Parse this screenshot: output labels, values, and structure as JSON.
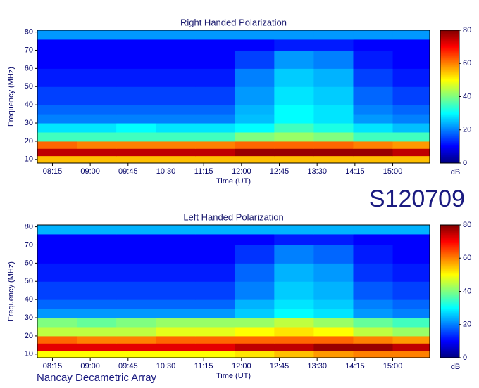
{
  "observation_id": "S120709",
  "instrument": "Nancay Decametric Array",
  "chart_data": [
    {
      "type": "heatmap",
      "title": "Right Handed Polarization",
      "x_label": "Time (UT)",
      "y_label": "Frequency (MHz)",
      "colorbar_label": "dB",
      "xlim": [
        477,
        944
      ],
      "ylim": [
        8,
        81
      ],
      "clim": [
        0,
        80
      ],
      "xticks": [
        {
          "value": 495,
          "label": "08:15"
        },
        {
          "value": 540,
          "label": "09:00"
        },
        {
          "value": 585,
          "label": "09:45"
        },
        {
          "value": 630,
          "label": "10:30"
        },
        {
          "value": 675,
          "label": "11:15"
        },
        {
          "value": 720,
          "label": "12:00"
        },
        {
          "value": 765,
          "label": "12:45"
        },
        {
          "value": 810,
          "label": "13:30"
        },
        {
          "value": 855,
          "label": "14:15"
        },
        {
          "value": 900,
          "label": "15:00"
        }
      ],
      "yticks": [
        10,
        20,
        30,
        40,
        50,
        60,
        70,
        80
      ],
      "cticks": [
        0,
        20,
        40,
        60,
        80
      ],
      "x_bins": [
        477,
        524,
        571,
        618,
        665,
        712,
        759,
        806,
        853,
        900,
        944
      ],
      "y_bins": [
        8,
        12,
        16,
        20,
        25,
        30,
        35,
        40,
        50,
        60,
        70,
        76,
        81
      ],
      "z": [
        [
          55,
          55,
          55,
          55,
          55,
          55,
          55,
          55,
          55,
          55
        ],
        [
          75,
          75,
          75,
          75,
          75,
          78,
          78,
          78,
          78,
          75
        ],
        [
          62,
          60,
          60,
          60,
          60,
          62,
          62,
          62,
          60,
          58
        ],
        [
          35,
          35,
          35,
          35,
          35,
          40,
          42,
          40,
          35,
          35
        ],
        [
          28,
          28,
          30,
          28,
          28,
          30,
          35,
          32,
          28,
          25
        ],
        [
          20,
          20,
          20,
          20,
          20,
          25,
          30,
          28,
          22,
          20
        ],
        [
          18,
          18,
          18,
          18,
          18,
          24,
          30,
          28,
          20,
          18
        ],
        [
          15,
          15,
          15,
          15,
          15,
          22,
          28,
          26,
          18,
          15
        ],
        [
          12,
          12,
          12,
          12,
          12,
          20,
          26,
          24,
          15,
          12
        ],
        [
          10,
          10,
          10,
          10,
          10,
          15,
          22,
          20,
          12,
          10
        ],
        [
          10,
          10,
          10,
          10,
          10,
          10,
          12,
          12,
          10,
          10
        ],
        [
          22,
          22,
          22,
          22,
          22,
          22,
          22,
          22,
          22,
          22
        ]
      ]
    },
    {
      "type": "heatmap",
      "title": "Left Handed Polarization",
      "x_label": "Time (UT)",
      "y_label": "Frequency (MHz)",
      "colorbar_label": "dB",
      "xlim": [
        477,
        944
      ],
      "ylim": [
        8,
        81
      ],
      "clim": [
        0,
        80
      ],
      "xticks": [
        {
          "value": 495,
          "label": "08:15"
        },
        {
          "value": 540,
          "label": "09:00"
        },
        {
          "value": 585,
          "label": "09:45"
        },
        {
          "value": 630,
          "label": "10:30"
        },
        {
          "value": 675,
          "label": "11:15"
        },
        {
          "value": 720,
          "label": "12:00"
        },
        {
          "value": 765,
          "label": "12:45"
        },
        {
          "value": 810,
          "label": "13:30"
        },
        {
          "value": 855,
          "label": "14:15"
        },
        {
          "value": 900,
          "label": "15:00"
        }
      ],
      "yticks": [
        10,
        20,
        30,
        40,
        50,
        60,
        70,
        80
      ],
      "cticks": [
        0,
        20,
        40,
        60,
        80
      ],
      "x_bins": [
        477,
        524,
        571,
        618,
        665,
        712,
        759,
        806,
        853,
        900,
        944
      ],
      "y_bins": [
        8,
        12,
        16,
        20,
        25,
        30,
        35,
        40,
        50,
        60,
        70,
        76,
        81
      ],
      "z": [
        [
          50,
          50,
          50,
          50,
          50,
          52,
          55,
          58,
          60,
          60
        ],
        [
          72,
          72,
          72,
          72,
          72,
          75,
          75,
          78,
          78,
          75
        ],
        [
          62,
          60,
          60,
          62,
          62,
          62,
          62,
          62,
          60,
          58
        ],
        [
          45,
          45,
          45,
          48,
          48,
          50,
          52,
          50,
          45,
          42
        ],
        [
          40,
          38,
          40,
          42,
          42,
          42,
          45,
          42,
          38,
          35
        ],
        [
          22,
          22,
          22,
          22,
          22,
          26,
          30,
          28,
          22,
          20
        ],
        [
          18,
          18,
          18,
          18,
          18,
          24,
          28,
          26,
          20,
          18
        ],
        [
          15,
          15,
          15,
          15,
          15,
          20,
          26,
          24,
          17,
          15
        ],
        [
          12,
          12,
          12,
          12,
          12,
          18,
          24,
          22,
          14,
          12
        ],
        [
          10,
          10,
          10,
          10,
          10,
          14,
          20,
          18,
          12,
          10
        ],
        [
          10,
          10,
          10,
          10,
          10,
          10,
          12,
          12,
          10,
          10
        ],
        [
          24,
          24,
          24,
          24,
          24,
          24,
          24,
          24,
          24,
          24
        ]
      ]
    }
  ]
}
